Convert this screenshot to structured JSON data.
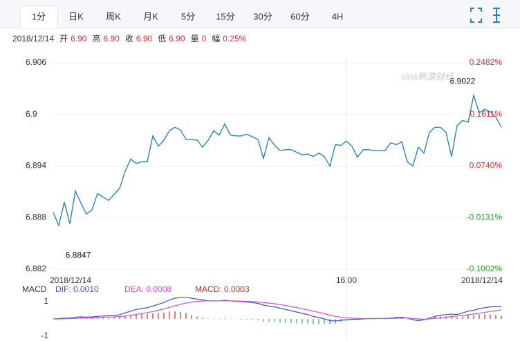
{
  "tabs": [
    "1分",
    "日K",
    "周K",
    "月K",
    "5分",
    "15分",
    "30分",
    "60分",
    "4H"
  ],
  "selected_tab": 0,
  "info": {
    "date": "2018/12/14",
    "fields": [
      {
        "label": "开",
        "value": "6.90"
      },
      {
        "label": "高",
        "value": "6.90"
      },
      {
        "label": "收",
        "value": "6.90"
      },
      {
        "label": "低",
        "value": "6.90"
      },
      {
        "label": "量",
        "value": "0"
      },
      {
        "label": "幅",
        "value": "0.25%"
      }
    ]
  },
  "watermark": "sina新浪财经",
  "chart_data": [
    {
      "type": "line",
      "color": "#1a7bb9",
      "grid": true,
      "categories": [
        "2018/12/14",
        null,
        null,
        null,
        null,
        null,
        null,
        null,
        null,
        null,
        null,
        null,
        null,
        null,
        null,
        null,
        null,
        null,
        null,
        null,
        null,
        null,
        null,
        null,
        null,
        null,
        null,
        null,
        null,
        null,
        null,
        null,
        null,
        null,
        null,
        null,
        null,
        null,
        null,
        null,
        null,
        null,
        null,
        null,
        null,
        null,
        null,
        null,
        null,
        null,
        null,
        null,
        null,
        "16:00",
        null,
        null,
        null,
        null,
        null,
        null,
        null,
        null,
        null,
        null,
        null,
        null,
        null,
        null,
        null,
        null,
        null,
        null,
        null,
        null,
        null,
        null,
        null,
        null,
        null,
        null,
        null,
        "2018/12/14"
      ],
      "values": [
        6.8886,
        6.8871,
        6.8898,
        6.8873,
        6.8911,
        6.8897,
        6.8884,
        6.8889,
        6.8908,
        6.8904,
        6.89,
        6.8907,
        6.8914,
        6.8934,
        6.8948,
        6.8943,
        6.8945,
        6.8945,
        6.8975,
        6.8963,
        6.897,
        6.8981,
        6.8985,
        6.8982,
        6.8971,
        6.8971,
        6.897,
        6.8962,
        6.897,
        6.8981,
        6.8976,
        6.8989,
        6.8976,
        6.8975,
        6.8975,
        6.8977,
        6.8974,
        6.8971,
        6.8949,
        6.8973,
        6.8964,
        6.8958,
        6.8959,
        6.8959,
        6.8956,
        6.8953,
        6.8954,
        6.8951,
        6.8955,
        6.8951,
        6.894,
        6.8965,
        6.8964,
        6.8969,
        6.8963,
        6.895,
        6.8959,
        6.8959,
        6.8958,
        6.8958,
        6.8958,
        6.8967,
        6.8965,
        6.8968,
        6.8945,
        6.894,
        6.8962,
        6.8955,
        6.8979,
        6.8985,
        6.8985,
        6.8979,
        6.8951,
        6.8987,
        6.8993,
        6.8991,
        6.9022,
        6.9002,
        6.9006,
        6.9003,
        6.8997,
        6.8985
      ],
      "annotations": [
        "6.9022",
        "6.8847"
      ],
      "ylim": [
        6.882,
        6.906
      ],
      "yticks": [
        6.906,
        6.9,
        6.894,
        6.888,
        6.882
      ],
      "y2lim": [
        -0.1002,
        0.2482
      ],
      "y2ticks": [
        {
          "value": 0.2482,
          "label": "0.2482%"
        },
        {
          "value": 0.1611,
          "label": "0.1611%"
        },
        {
          "value": 0.074,
          "label": "0.0740%"
        },
        {
          "value": -0.0131,
          "label": "-0.0131%"
        },
        {
          "value": -0.1002,
          "label": "-0.1002%"
        }
      ]
    },
    {
      "type": "macd",
      "title": "MACD",
      "ylim": [
        -1.28,
        1.84
      ],
      "yticks": [
        1,
        -1
      ],
      "series": [
        {
          "name": "DIF: 0.0010",
          "type": "line",
          "color": "#3b4fd6",
          "values": [
            0,
            0.02,
            0.05,
            0.05,
            0.1,
            0.12,
            0.1,
            0.12,
            0.15,
            0.17,
            0.18,
            0.2,
            0.25,
            0.35,
            0.45,
            0.55,
            0.6,
            0.65,
            0.75,
            0.85,
            0.95,
            1.1,
            1.2,
            1.25,
            1.25,
            1.2,
            1.15,
            1.1,
            1.05,
            1.05,
            1.05,
            1.08,
            1.05,
            1.02,
            1.0,
            0.98,
            0.95,
            0.9,
            0.8,
            0.75,
            0.7,
            0.62,
            0.55,
            0.48,
            0.4,
            0.32,
            0.25,
            0.15,
            0.08,
            0.0,
            -0.1,
            -0.12,
            -0.08,
            -0.05,
            -0.02,
            -0.02,
            0.0,
            0.02,
            0.02,
            0.03,
            0.03,
            0.05,
            0.08,
            0.1,
            0.05,
            -0.05,
            -0.1,
            -0.05,
            0.05,
            0.15,
            0.22,
            0.25,
            0.28,
            0.25,
            0.35,
            0.45,
            0.5,
            0.6,
            0.65,
            0.7,
            0.72,
            0.7
          ]
        },
        {
          "name": "DEA: 0.0008",
          "type": "line",
          "color": "#d84ccf",
          "values": [
            0,
            0,
            0.01,
            0.02,
            0.03,
            0.05,
            0.06,
            0.07,
            0.08,
            0.1,
            0.11,
            0.12,
            0.14,
            0.17,
            0.21,
            0.26,
            0.31,
            0.37,
            0.43,
            0.5,
            0.58,
            0.67,
            0.76,
            0.85,
            0.92,
            0.98,
            1.02,
            1.04,
            1.05,
            1.05,
            1.05,
            1.05,
            1.05,
            1.04,
            1.03,
            1.02,
            1.0,
            0.98,
            0.95,
            0.92,
            0.88,
            0.83,
            0.78,
            0.72,
            0.66,
            0.59,
            0.52,
            0.45,
            0.38,
            0.3,
            0.22,
            0.15,
            0.1,
            0.07,
            0.05,
            0.03,
            0.02,
            0.02,
            0.02,
            0.02,
            0.02,
            0.03,
            0.04,
            0.05,
            0.05,
            0.03,
            0.0,
            -0.02,
            0.0,
            0.03,
            0.07,
            0.1,
            0.14,
            0.17,
            0.2,
            0.24,
            0.28,
            0.33,
            0.38,
            0.43,
            0.48,
            0.52
          ]
        },
        {
          "name": "MACD: 0.0003",
          "type": "bar",
          "color": "#b8322e",
          "down_color": "#2a9d9a",
          "values": [
            0,
            0.02,
            0.04,
            0.03,
            0.07,
            0.07,
            0.04,
            0.05,
            0.07,
            0.07,
            0.07,
            0.08,
            0.11,
            0.18,
            0.24,
            0.29,
            0.29,
            0.28,
            0.32,
            0.35,
            0.37,
            0.43,
            0.44,
            0.4,
            0.33,
            0.22,
            0.13,
            0.06,
            0.0,
            0.0,
            0.0,
            0.03,
            0.0,
            -0.02,
            -0.03,
            -0.04,
            -0.05,
            -0.08,
            -0.15,
            -0.17,
            -0.18,
            -0.21,
            -0.23,
            -0.24,
            -0.26,
            -0.27,
            -0.27,
            -0.3,
            -0.3,
            -0.3,
            -0.32,
            -0.27,
            -0.18,
            -0.12,
            -0.07,
            -0.05,
            -0.02,
            0.0,
            0.0,
            0.01,
            0.01,
            0.02,
            0.04,
            0.05,
            0.0,
            -0.08,
            -0.1,
            -0.03,
            0.05,
            0.12,
            0.15,
            0.15,
            0.14,
            0.08,
            0.15,
            0.21,
            0.22,
            0.27,
            0.27,
            0.27,
            0.24,
            0.18
          ]
        }
      ]
    }
  ]
}
